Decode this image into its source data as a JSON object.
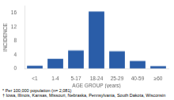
{
  "chart_data": {
    "type": "bar",
    "categories": [
      "<1",
      "1-4",
      "5-17",
      "18-24",
      "25-29",
      "40-59",
      "≥60"
    ],
    "values": [
      0.8,
      2.8,
      5.2,
      16.5,
      5.0,
      2.2,
      0.7
    ],
    "color": "#2a5da8",
    "xlabel": "AGE GROUP (years)",
    "ylabel": "INCIDENCE",
    "ylim": [
      0,
      18
    ],
    "yticks": [
      0,
      4,
      8,
      12,
      16
    ],
    "grid": false,
    "annotations": [
      "* Per 100,000 population (n= 2,081)",
      "† Iowa, Illinois, Kansas, Missouri, Nebraska, Pennsylvania, South Dakota, Wisconsin"
    ]
  }
}
